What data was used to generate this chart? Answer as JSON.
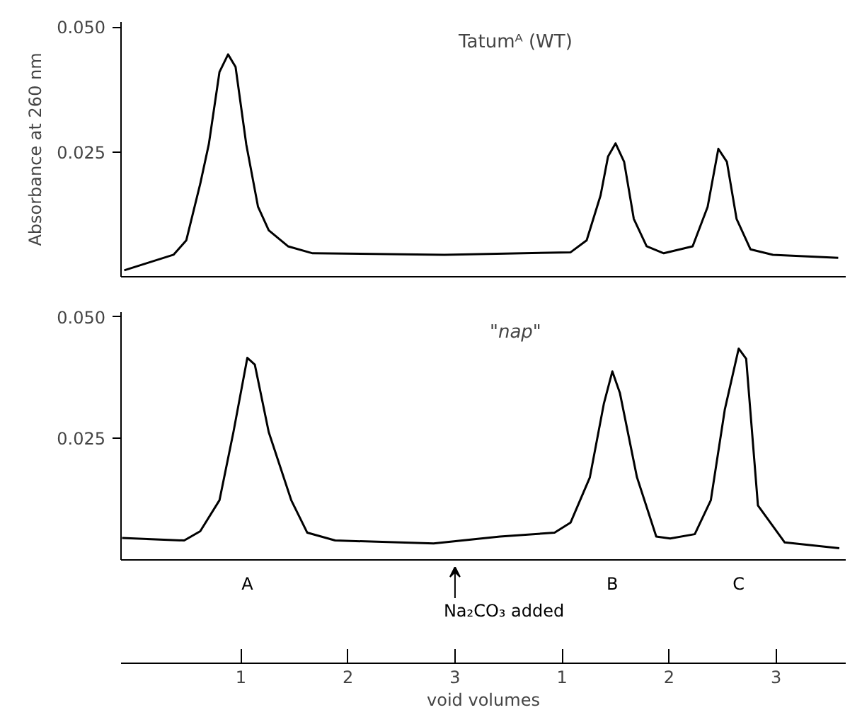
{
  "chart_data": [
    {
      "type": "line",
      "title": "Tatumᴬ (WT)",
      "ylabel": "Absorbance at 260 nm",
      "xlim": [
        -0.12,
        6.65
      ],
      "ylim": [
        0,
        0.051
      ],
      "yticks": [
        0.025,
        {
          "value": 0.05,
          "label": "0.050"
        }
      ],
      "tick_labels": "y",
      "grid": false,
      "series": [
        {
          "color": "#000000",
          "x": [
            -0.09,
            0.37,
            0.49,
            0.62,
            0.7,
            0.8,
            0.88,
            0.95,
            1.05,
            1.16,
            1.26,
            1.44,
            1.67,
            2.9,
            4.08,
            4.23,
            4.36,
            4.43,
            4.5,
            4.58,
            4.67,
            4.79,
            4.95,
            5.22,
            5.36,
            5.46,
            5.54,
            5.63,
            5.76,
            5.97,
            6.58
          ],
          "values": [
            0.0013,
            0.0044,
            0.0073,
            0.0186,
            0.0265,
            0.041,
            0.0445,
            0.042,
            0.0265,
            0.014,
            0.0093,
            0.0061,
            0.0047,
            0.0044,
            0.0049,
            0.0073,
            0.0163,
            0.0241,
            0.0267,
            0.023,
            0.0116,
            0.0061,
            0.0047,
            0.0061,
            0.014,
            0.0256,
            0.023,
            0.0116,
            0.0055,
            0.0044,
            0.0038
          ]
        }
      ]
    },
    {
      "type": "line",
      "title": "\"nap\"",
      "xlabel": "void volumes",
      "xlim": [
        -0.12,
        6.65
      ],
      "xticks": [
        1,
        2,
        3
      ],
      "x2lim": [
        -3.12,
        3.65
      ],
      "x2ticks": [
        1,
        2,
        3
      ],
      "ylim": [
        0,
        0.051
      ],
      "yticks": [
        0.025,
        {
          "value": 0.05,
          "label": "0.050"
        }
      ],
      "grid": false,
      "annotations": [
        "A",
        "B",
        "C",
        "Na₂CO₃ added"
      ],
      "series": [
        {
          "color": "#000000",
          "x": [
            -0.11,
            0.47,
            0.62,
            0.8,
            0.93,
            1.06,
            1.13,
            1.26,
            1.47,
            1.62,
            1.88,
            2.8,
            3.42,
            3.93,
            4.08,
            4.26,
            4.39,
            4.47,
            4.54,
            4.7,
            4.88,
            5.01,
            5.24,
            5.39,
            5.52,
            5.65,
            5.72,
            5.83,
            6.08,
            6.59
          ],
          "values": [
            0.0045,
            0.004,
            0.0059,
            0.0123,
            0.0263,
            0.0416,
            0.0402,
            0.0263,
            0.0123,
            0.0056,
            0.004,
            0.0034,
            0.0048,
            0.0056,
            0.0077,
            0.017,
            0.0321,
            0.0388,
            0.0344,
            0.017,
            0.0048,
            0.0044,
            0.0053,
            0.0123,
            0.0309,
            0.0435,
            0.0414,
            0.0112,
            0.0036,
            0.0024
          ]
        }
      ]
    }
  ]
}
